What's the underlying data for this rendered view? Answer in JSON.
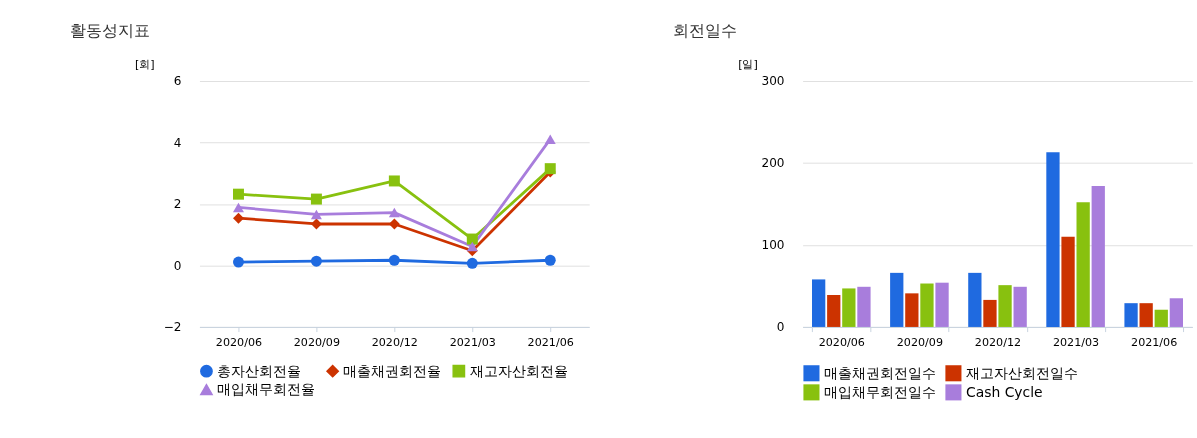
{
  "chart_data": [
    {
      "type": "line",
      "title": "활동성지표",
      "ylabel": "[회]",
      "categories": [
        "2020/06",
        "2020/09",
        "2020/12",
        "2021/03",
        "2021/06"
      ],
      "ylim": [
        -2,
        6
      ],
      "yticks": [
        -2,
        0,
        2,
        4,
        6
      ],
      "grid": "y",
      "legend": "bottom",
      "line_style": "solid",
      "series": [
        {
          "name": "총자산회전율",
          "color": "#1f6ae0",
          "marker": "circle",
          "values": [
            0.11,
            0.14,
            0.17,
            0.07,
            0.17
          ]
        },
        {
          "name": "매출채권회전율",
          "color": "#cc3300",
          "marker": "diamond",
          "values": [
            1.54,
            1.35,
            1.35,
            0.48,
            3.04
          ]
        },
        {
          "name": "재고자산회전율",
          "color": "#88c10f",
          "marker": "square",
          "values": [
            2.32,
            2.16,
            2.75,
            0.86,
            3.15
          ]
        },
        {
          "name": "매입채무회전율",
          "color": "#a87ddc",
          "marker": "triangle",
          "values": [
            1.89,
            1.66,
            1.72,
            0.62,
            4.11
          ]
        }
      ]
    },
    {
      "type": "bar",
      "title": "회전일수",
      "ylabel": "[일]",
      "categories": [
        "2020/06",
        "2020/09",
        "2020/12",
        "2021/03",
        "2021/06"
      ],
      "ylim": [
        0,
        300
      ],
      "yticks": [
        0,
        100,
        200,
        300
      ],
      "grid": "y",
      "legend": "bottom",
      "series": [
        {
          "name": "매출채권회전일수",
          "color": "#1f6ae0",
          "values": [
            58,
            66,
            66,
            213,
            29
          ]
        },
        {
          "name": "재고자산회전일수",
          "color": "#cc3300",
          "values": [
            39,
            41,
            33,
            110,
            29
          ]
        },
        {
          "name": "매입채무회전일수",
          "color": "#88c10f",
          "values": [
            47,
            53,
            51,
            152,
            21
          ]
        },
        {
          "name": "Cash Cycle",
          "color": "#a87ddc",
          "values": [
            49,
            54,
            49,
            172,
            35
          ]
        }
      ]
    }
  ]
}
